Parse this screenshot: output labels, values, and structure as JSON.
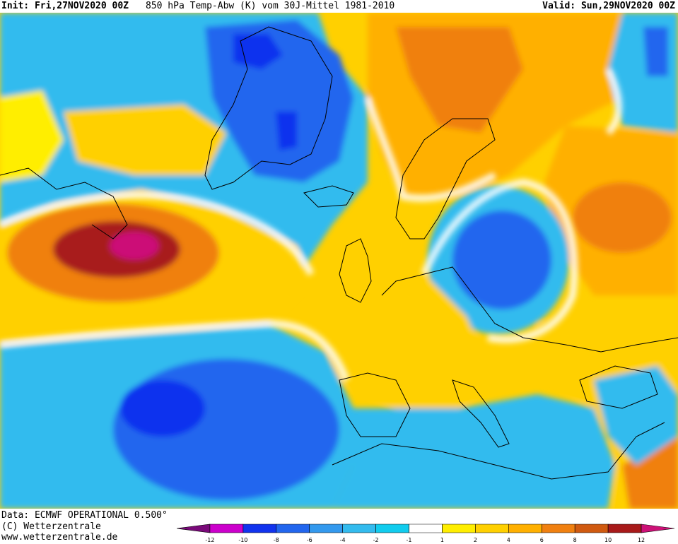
{
  "header": {
    "init": "Init: Fri,27NOV2020 00Z",
    "title": "850 hPa Temp-Abw (K) vom 30J-Mittel 1981-2010",
    "valid": "Valid: Sun,29NOV2020 00Z"
  },
  "footer": {
    "data_source": "Data: ECMWF OPERATIONAL 0.500°",
    "copyright": "(C) Wetterzentrale",
    "website": "www.wetterzentrale.de"
  },
  "colorbar": {
    "tick_labels": [
      "-12",
      "-10",
      "-8",
      "-6",
      "-4",
      "-2",
      "-1",
      "1",
      "2",
      "4",
      "6",
      "8",
      "10",
      "12"
    ],
    "colors": [
      "#7a0a7a",
      "#cc00cc",
      "#1133ee",
      "#2266ee",
      "#3399ee",
      "#33bbee",
      "#11ccee",
      "#ffffff",
      "#ffee00",
      "#ffd000",
      "#ffb000",
      "#f08010",
      "#d05a10",
      "#a81a1a",
      "#cc1177"
    ]
  },
  "anomaly_regions": [
    {
      "name": "Greenland cold",
      "anomaly": -6
    },
    {
      "name": "North Atlantic warm",
      "anomaly": 10
    },
    {
      "name": "Central Atlantic cold",
      "anomaly": -6
    },
    {
      "name": "Central Europe cold",
      "anomaly": -6
    },
    {
      "name": "Scandinavia warm",
      "anomaly": 6
    },
    {
      "name": "Western Europe warm",
      "anomaly": 3
    }
  ]
}
